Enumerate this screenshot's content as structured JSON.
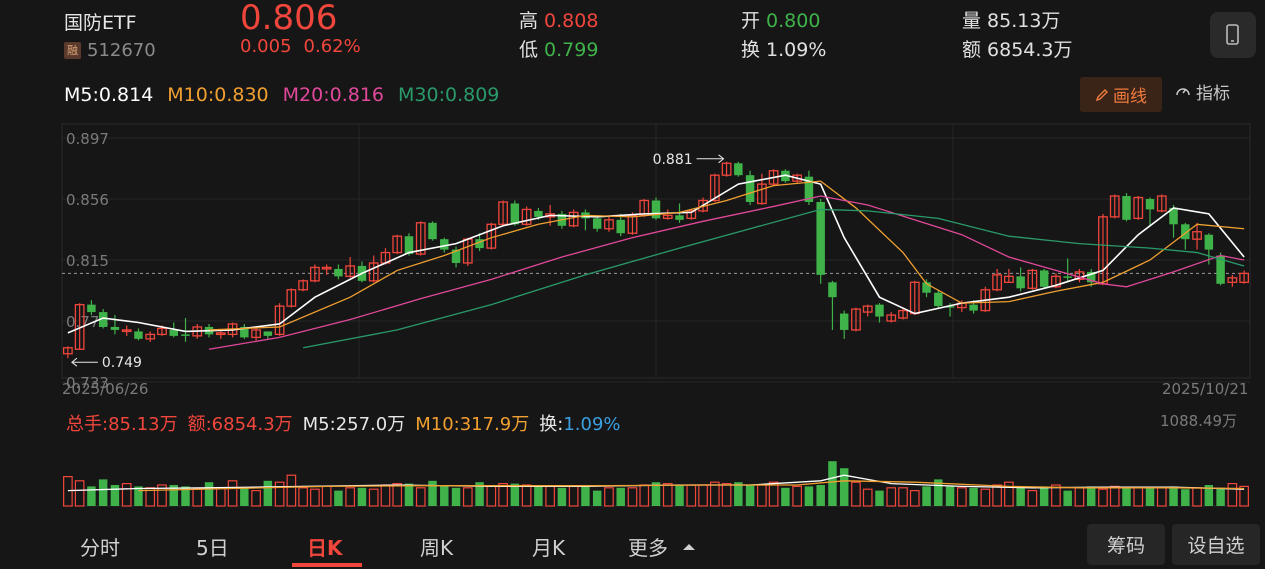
{
  "header": {
    "name": "国防ETF",
    "code": "512670",
    "badge": "融",
    "price": "0.806",
    "change": "0.005",
    "change_pct": "0.62%",
    "high_label": "高",
    "high": "0.808",
    "low_label": "低",
    "low": "0.799",
    "open_label": "开",
    "open": "0.800",
    "turnover_label": "换",
    "turnover": "1.09%",
    "volume_label": "量",
    "volume": "85.13万",
    "amount_label": "额",
    "amount": "6854.3万"
  },
  "ma": {
    "m5": "M5:0.814",
    "m10": "M10:0.830",
    "m20": "M20:0.816",
    "m30": "M30:0.809",
    "draw_label": "画线",
    "indicator_label": "指标"
  },
  "colors": {
    "up": "#f0463c",
    "down": "#3fb24a",
    "m5": "#ffffff",
    "m10": "#f0a030",
    "m20": "#e0489a",
    "m30": "#2a9a6a"
  },
  "chart_data": {
    "type": "candlestick",
    "y_ticks": [
      "0.897",
      "0.856",
      "0.815",
      "0.774",
      "0.733"
    ],
    "ylim": [
      0.733,
      0.897
    ],
    "start_date": "2025/06/26",
    "end_date": "2025/10/21",
    "max_annotation": "0.881",
    "min_annotation": "0.749",
    "candles": [
      [
        0.752,
        0.756,
        0.749,
        0.757
      ],
      [
        0.755,
        0.785,
        0.755,
        0.786
      ],
      [
        0.785,
        0.78,
        0.778,
        0.788
      ],
      [
        0.78,
        0.77,
        0.769,
        0.782
      ],
      [
        0.77,
        0.768,
        0.765,
        0.778
      ],
      [
        0.768,
        0.768,
        0.764,
        0.771
      ],
      [
        0.767,
        0.762,
        0.761,
        0.769
      ],
      [
        0.762,
        0.765,
        0.76,
        0.767
      ],
      [
        0.765,
        0.769,
        0.764,
        0.771
      ],
      [
        0.768,
        0.764,
        0.763,
        0.773
      ],
      [
        0.765,
        0.764,
        0.76,
        0.776
      ],
      [
        0.764,
        0.77,
        0.762,
        0.772
      ],
      [
        0.77,
        0.765,
        0.763,
        0.772
      ],
      [
        0.765,
        0.766,
        0.762,
        0.768
      ],
      [
        0.765,
        0.772,
        0.763,
        0.773
      ],
      [
        0.77,
        0.763,
        0.762,
        0.772
      ],
      [
        0.763,
        0.768,
        0.761,
        0.769
      ],
      [
        0.767,
        0.764,
        0.762,
        0.767
      ],
      [
        0.765,
        0.784,
        0.764,
        0.786
      ],
      [
        0.784,
        0.795,
        0.783,
        0.796
      ],
      [
        0.795,
        0.801,
        0.794,
        0.802
      ],
      [
        0.801,
        0.81,
        0.8,
        0.812
      ],
      [
        0.81,
        0.81,
        0.805,
        0.812
      ],
      [
        0.809,
        0.804,
        0.802,
        0.812
      ],
      [
        0.804,
        0.811,
        0.803,
        0.817
      ],
      [
        0.811,
        0.801,
        0.8,
        0.814
      ],
      [
        0.801,
        0.813,
        0.8,
        0.818
      ],
      [
        0.813,
        0.82,
        0.812,
        0.823
      ],
      [
        0.82,
        0.831,
        0.819,
        0.832
      ],
      [
        0.831,
        0.819,
        0.818,
        0.833
      ],
      [
        0.819,
        0.84,
        0.818,
        0.841
      ],
      [
        0.84,
        0.829,
        0.828,
        0.841
      ],
      [
        0.829,
        0.822,
        0.82,
        0.83
      ],
      [
        0.822,
        0.813,
        0.81,
        0.824
      ],
      [
        0.813,
        0.829,
        0.811,
        0.83
      ],
      [
        0.829,
        0.823,
        0.821,
        0.833
      ],
      [
        0.823,
        0.839,
        0.822,
        0.84
      ],
      [
        0.839,
        0.854,
        0.838,
        0.855
      ],
      [
        0.853,
        0.839,
        0.838,
        0.855
      ],
      [
        0.839,
        0.849,
        0.838,
        0.851
      ],
      [
        0.848,
        0.844,
        0.842,
        0.85
      ],
      [
        0.844,
        0.846,
        0.838,
        0.852
      ],
      [
        0.846,
        0.838,
        0.836,
        0.848
      ],
      [
        0.838,
        0.847,
        0.837,
        0.849
      ],
      [
        0.847,
        0.843,
        0.835,
        0.849
      ],
      [
        0.843,
        0.836,
        0.834,
        0.845
      ],
      [
        0.836,
        0.842,
        0.834,
        0.844
      ],
      [
        0.842,
        0.833,
        0.831,
        0.846
      ],
      [
        0.833,
        0.845,
        0.832,
        0.847
      ],
      [
        0.845,
        0.855,
        0.844,
        0.856
      ],
      [
        0.855,
        0.843,
        0.842,
        0.857
      ],
      [
        0.843,
        0.845,
        0.842,
        0.849
      ],
      [
        0.845,
        0.842,
        0.84,
        0.853
      ],
      [
        0.843,
        0.848,
        0.842,
        0.849
      ],
      [
        0.848,
        0.855,
        0.847,
        0.857
      ],
      [
        0.855,
        0.872,
        0.854,
        0.873
      ],
      [
        0.872,
        0.88,
        0.871,
        0.881
      ],
      [
        0.88,
        0.872,
        0.871,
        0.881
      ],
      [
        0.872,
        0.854,
        0.852,
        0.875
      ],
      [
        0.853,
        0.866,
        0.852,
        0.873
      ],
      [
        0.866,
        0.875,
        0.865,
        0.876
      ],
      [
        0.875,
        0.868,
        0.867,
        0.876
      ],
      [
        0.868,
        0.872,
        0.867,
        0.873
      ],
      [
        0.871,
        0.854,
        0.852,
        0.875
      ],
      [
        0.854,
        0.805,
        0.799,
        0.856
      ],
      [
        0.8,
        0.79,
        0.768,
        0.801
      ],
      [
        0.779,
        0.768,
        0.762,
        0.781
      ],
      [
        0.768,
        0.782,
        0.767,
        0.783
      ],
      [
        0.78,
        0.784,
        0.777,
        0.785
      ],
      [
        0.785,
        0.777,
        0.773,
        0.786
      ],
      [
        0.774,
        0.778,
        0.773,
        0.78
      ],
      [
        0.776,
        0.781,
        0.775,
        0.783
      ],
      [
        0.779,
        0.8,
        0.778,
        0.801
      ],
      [
        0.8,
        0.793,
        0.79,
        0.802
      ],
      [
        0.793,
        0.784,
        0.782,
        0.795
      ],
      [
        0.784,
        0.783,
        0.777,
        0.786
      ],
      [
        0.783,
        0.786,
        0.78,
        0.788
      ],
      [
        0.785,
        0.781,
        0.779,
        0.788
      ],
      [
        0.781,
        0.795,
        0.78,
        0.797
      ],
      [
        0.795,
        0.805,
        0.794,
        0.809
      ],
      [
        0.8,
        0.804,
        0.8,
        0.809
      ],
      [
        0.804,
        0.796,
        0.794,
        0.81
      ],
      [
        0.796,
        0.808,
        0.795,
        0.809
      ],
      [
        0.808,
        0.797,
        0.796,
        0.809
      ],
      [
        0.797,
        0.804,
        0.796,
        0.806
      ],
      [
        0.804,
        0.803,
        0.8,
        0.816
      ],
      [
        0.802,
        0.807,
        0.8,
        0.809
      ],
      [
        0.807,
        0.8,
        0.797,
        0.809
      ],
      [
        0.799,
        0.844,
        0.798,
        0.846
      ],
      [
        0.844,
        0.858,
        0.843,
        0.859
      ],
      [
        0.858,
        0.842,
        0.841,
        0.86
      ],
      [
        0.843,
        0.857,
        0.842,
        0.858
      ],
      [
        0.856,
        0.849,
        0.838,
        0.857
      ],
      [
        0.848,
        0.858,
        0.847,
        0.859
      ],
      [
        0.85,
        0.839,
        0.83,
        0.852
      ],
      [
        0.839,
        0.829,
        0.822,
        0.84
      ],
      [
        0.829,
        0.834,
        0.822,
        0.84
      ],
      [
        0.832,
        0.822,
        0.812,
        0.833
      ],
      [
        0.818,
        0.799,
        0.798,
        0.82
      ],
      [
        0.8,
        0.803,
        0.797,
        0.805
      ],
      [
        0.8,
        0.806,
        0.799,
        0.808
      ]
    ],
    "ma_series": {
      "M5": [
        [
          0,
          0.766
        ],
        [
          3,
          0.776
        ],
        [
          6,
          0.773
        ],
        [
          10,
          0.767
        ],
        [
          14,
          0.768
        ],
        [
          18,
          0.772
        ],
        [
          21,
          0.79
        ],
        [
          25,
          0.806
        ],
        [
          29,
          0.82
        ],
        [
          33,
          0.826
        ],
        [
          37,
          0.838
        ],
        [
          41,
          0.845
        ],
        [
          45,
          0.844
        ],
        [
          49,
          0.846
        ],
        [
          53,
          0.847
        ],
        [
          57,
          0.866
        ],
        [
          61,
          0.872
        ],
        [
          64,
          0.866
        ],
        [
          66,
          0.83
        ],
        [
          69,
          0.79
        ],
        [
          72,
          0.779
        ],
        [
          76,
          0.786
        ],
        [
          80,
          0.79
        ],
        [
          84,
          0.798
        ],
        [
          88,
          0.808
        ],
        [
          91,
          0.832
        ],
        [
          94,
          0.85
        ],
        [
          97,
          0.846
        ],
        [
          100,
          0.817
        ]
      ],
      "M10": [
        [
          12,
          0.768
        ],
        [
          18,
          0.77
        ],
        [
          24,
          0.79
        ],
        [
          28,
          0.808
        ],
        [
          32,
          0.818
        ],
        [
          36,
          0.83
        ],
        [
          40,
          0.839
        ],
        [
          44,
          0.845
        ],
        [
          48,
          0.844
        ],
        [
          52,
          0.847
        ],
        [
          56,
          0.855
        ],
        [
          60,
          0.865
        ],
        [
          64,
          0.868
        ],
        [
          67,
          0.85
        ],
        [
          71,
          0.82
        ],
        [
          73,
          0.799
        ],
        [
          76,
          0.786
        ],
        [
          80,
          0.787
        ],
        [
          84,
          0.794
        ],
        [
          88,
          0.8
        ],
        [
          92,
          0.815
        ],
        [
          96,
          0.839
        ],
        [
          100,
          0.836
        ]
      ],
      "M20": [
        [
          12,
          0.755
        ],
        [
          18,
          0.763
        ],
        [
          24,
          0.775
        ],
        [
          30,
          0.789
        ],
        [
          36,
          0.802
        ],
        [
          42,
          0.817
        ],
        [
          48,
          0.83
        ],
        [
          54,
          0.841
        ],
        [
          60,
          0.851
        ],
        [
          64,
          0.858
        ],
        [
          68,
          0.852
        ],
        [
          72,
          0.842
        ],
        [
          76,
          0.832
        ],
        [
          80,
          0.817
        ],
        [
          84,
          0.808
        ],
        [
          88,
          0.799
        ],
        [
          90,
          0.797
        ],
        [
          94,
          0.807
        ],
        [
          98,
          0.818
        ],
        [
          100,
          0.815
        ]
      ],
      "M30": [
        [
          20,
          0.756
        ],
        [
          28,
          0.768
        ],
        [
          36,
          0.785
        ],
        [
          44,
          0.805
        ],
        [
          52,
          0.823
        ],
        [
          58,
          0.836
        ],
        [
          64,
          0.849
        ],
        [
          68,
          0.848
        ],
        [
          74,
          0.843
        ],
        [
          80,
          0.831
        ],
        [
          86,
          0.826
        ],
        [
          92,
          0.823
        ],
        [
          96,
          0.82
        ],
        [
          100,
          0.811
        ]
      ]
    },
    "volume_label": "总手:85.13万",
    "amount_label": "额:6854.3万",
    "vol_m5_label": "M5:257.0万",
    "vol_m10_label": "M10:317.9万",
    "turnover_label": "换:",
    "turnover_value": "1.09%",
    "vol_max_label": "1088.49万",
    "volumes": [
      0.42,
      0.36,
      0.28,
      0.38,
      0.3,
      0.32,
      0.28,
      0.26,
      0.3,
      0.3,
      0.28,
      0.24,
      0.34,
      0.26,
      0.36,
      0.26,
      0.22,
      0.36,
      0.34,
      0.44,
      0.26,
      0.24,
      0.28,
      0.22,
      0.26,
      0.26,
      0.24,
      0.3,
      0.32,
      0.32,
      0.26,
      0.36,
      0.28,
      0.26,
      0.26,
      0.34,
      0.28,
      0.32,
      0.32,
      0.3,
      0.28,
      0.28,
      0.26,
      0.28,
      0.28,
      0.22,
      0.26,
      0.26,
      0.26,
      0.3,
      0.34,
      0.32,
      0.3,
      0.3,
      0.3,
      0.34,
      0.32,
      0.34,
      0.3,
      0.3,
      0.34,
      0.26,
      0.28,
      0.28,
      0.3,
      0.64,
      0.54,
      0.34,
      0.24,
      0.22,
      0.26,
      0.26,
      0.22,
      0.28,
      0.38,
      0.28,
      0.26,
      0.26,
      0.24,
      0.3,
      0.34,
      0.26,
      0.22,
      0.28,
      0.3,
      0.22,
      0.26,
      0.28,
      0.24,
      0.28,
      0.26,
      0.26,
      0.26,
      0.26,
      0.28,
      0.24,
      0.26,
      0.3,
      0.26,
      0.32,
      0.28
    ],
    "vol_ma5": [
      [
        0,
        0.22
      ],
      [
        6,
        0.25
      ],
      [
        12,
        0.26
      ],
      [
        20,
        0.28
      ],
      [
        28,
        0.3
      ],
      [
        36,
        0.28
      ],
      [
        44,
        0.28
      ],
      [
        52,
        0.3
      ],
      [
        58,
        0.3
      ],
      [
        64,
        0.36
      ],
      [
        66,
        0.44
      ],
      [
        70,
        0.32
      ],
      [
        76,
        0.28
      ],
      [
        82,
        0.26
      ],
      [
        88,
        0.27
      ],
      [
        94,
        0.27
      ],
      [
        100,
        0.24
      ]
    ],
    "vol_ma10": [
      [
        6,
        0.22
      ],
      [
        14,
        0.25
      ],
      [
        22,
        0.28
      ],
      [
        30,
        0.29
      ],
      [
        38,
        0.29
      ],
      [
        46,
        0.29
      ],
      [
        54,
        0.3
      ],
      [
        62,
        0.3
      ],
      [
        66,
        0.36
      ],
      [
        72,
        0.34
      ],
      [
        80,
        0.28
      ],
      [
        86,
        0.26
      ],
      [
        94,
        0.26
      ],
      [
        100,
        0.25
      ]
    ]
  },
  "tabs": [
    "分时",
    "5日",
    "日K",
    "周K",
    "月K",
    "更多"
  ],
  "buttons": {
    "chips": "筹码",
    "settings": "设自选"
  }
}
